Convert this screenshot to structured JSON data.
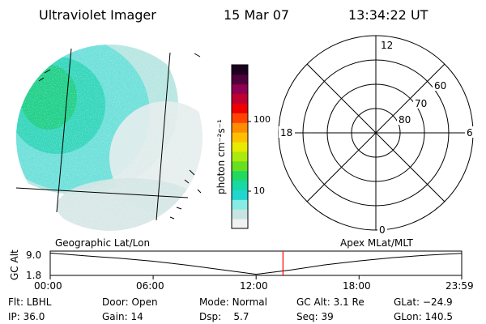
{
  "header": {
    "instrument": "Ultraviolet Imager",
    "date": "15 Mar 07",
    "time": "13:34:22 UT"
  },
  "colorbar": {
    "unit_label": "photon cm⁻²s⁻¹",
    "ticks": [
      "100",
      "10"
    ],
    "scale": "log",
    "colors": [
      "#eef2f2",
      "#c8e4e2",
      "#88ece6",
      "#22d6d0",
      "#18d8a4",
      "#22d860",
      "#66e020",
      "#aaea10",
      "#e8ea00",
      "#ffc000",
      "#ff8c00",
      "#ff4400",
      "#ee0000",
      "#c00030",
      "#900050",
      "#50003c",
      "#1c0020"
    ]
  },
  "polar_plot": {
    "mlt_labels": {
      "top": "12",
      "bottom": "0",
      "left": "18",
      "right": "6"
    },
    "lat_labels": [
      "60",
      "70",
      "80"
    ]
  },
  "timeline": {
    "left_label": "Geographic Lat/Lon",
    "right_label": "Apex MLat/MLT",
    "axis_title": "GC Alt",
    "y_ticks": [
      "9.0",
      "1.8"
    ],
    "x_ticks": [
      "00:00",
      "06:00",
      "12:00",
      "18:00",
      "23:59"
    ],
    "current_time_marker_color": "#ff0000"
  },
  "chart_data": {
    "type": "line",
    "title": "",
    "xlabel": "",
    "ylabel": "GC Alt",
    "x_ticks": [
      "00:00",
      "06:00",
      "12:00",
      "18:00",
      "23:59"
    ],
    "ylim": [
      1.8,
      9.0
    ],
    "series": [
      {
        "x": [
          "00:00",
          "02:00",
          "04:00",
          "06:00",
          "08:00",
          "10:00",
          "12:00",
          "14:00",
          "16:00",
          "18:00",
          "20:00",
          "22:00",
          "23:59"
        ],
        "values": [
          8.9,
          8.0,
          7.2,
          6.2,
          4.9,
          3.4,
          1.9,
          3.3,
          5.0,
          6.3,
          7.4,
          8.2,
          8.8
        ]
      }
    ],
    "marker_time": "13:34"
  },
  "status": {
    "flt_label": "Flt:",
    "flt_value": "LBHL",
    "ip_label": "IP:",
    "ip_value": "36.0",
    "door_label": "Door:",
    "door_value": "Open",
    "gain_label": "Gain:",
    "gain_value": "14",
    "mode_label": "Mode:",
    "mode_value": "Normal",
    "dsp_label": "Dsp:",
    "dsp_value": "5.7",
    "gcalt_label": "GC Alt:",
    "gcalt_value": "3.1 Re",
    "seq_label": "Seq:",
    "seq_value": "39",
    "glat_label": "GLat:",
    "glat_value": "−24.9",
    "glon_label": "GLon:",
    "glon_value": "140.5"
  }
}
